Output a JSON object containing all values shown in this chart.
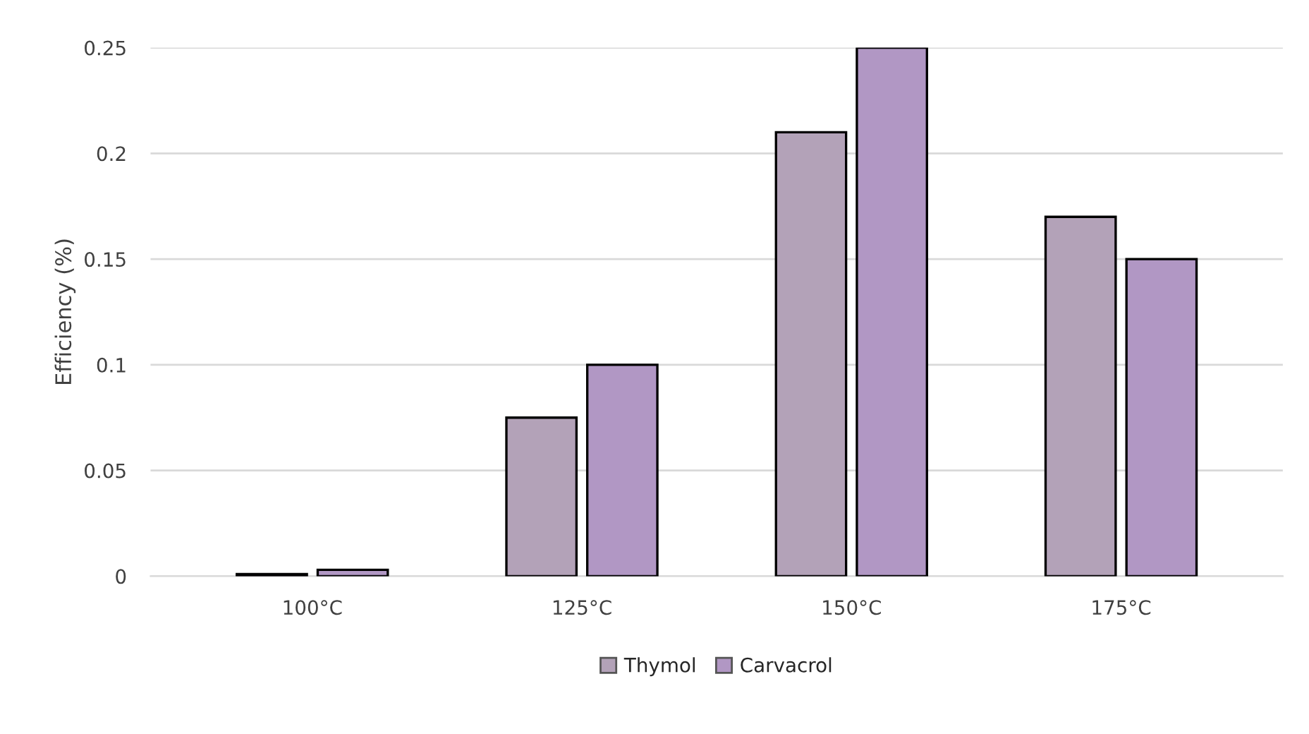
{
  "chart_data": {
    "type": "bar",
    "ylabel": "Efficiency (%)",
    "categories": [
      "100°C",
      "125°C",
      "150°C",
      "175°C"
    ],
    "series": [
      {
        "name": "Thymol",
        "color": "#b3a2b8",
        "values": [
          0.001,
          0.075,
          0.21,
          0.17
        ]
      },
      {
        "name": "Carvacrol",
        "color": "#b197c4",
        "values": [
          0.003,
          0.1,
          0.25,
          0.15
        ]
      }
    ],
    "ylim": [
      0,
      0.25
    ],
    "yticks": [
      {
        "value": 0,
        "label": "0"
      },
      0.05,
      0.1,
      0.15,
      0.2,
      0.25
    ],
    "grid": "y",
    "legend": "bottom"
  }
}
